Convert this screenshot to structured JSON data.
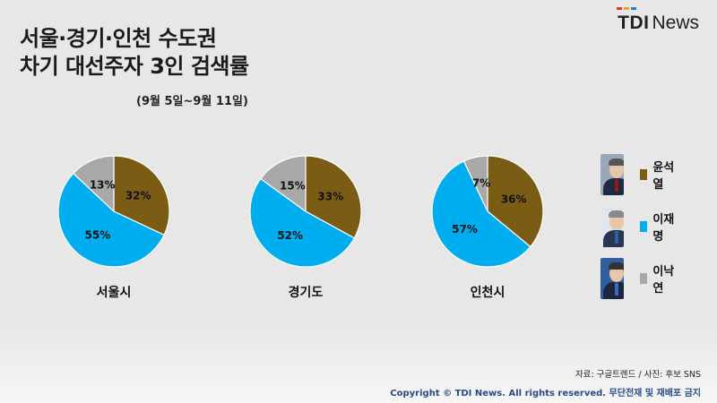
{
  "header": {
    "title_line1": "서울·경기·인천 수도권",
    "title_line2": "차기 대선주자 3인 검색률",
    "subtitle": "(9월 5일~9월 11일)"
  },
  "brand": {
    "tdi": "TDI",
    "news": "News"
  },
  "chart_data": [
    {
      "type": "pie",
      "title": "서울시",
      "labels": [
        "윤석열",
        "이재명",
        "이낙연"
      ],
      "values": [
        32,
        55,
        13
      ],
      "value_labels": [
        "32%",
        "55%",
        "13%"
      ],
      "colors": [
        "#7b5c14",
        "#00aeef",
        "#a8a8a8"
      ]
    },
    {
      "type": "pie",
      "title": "경기도",
      "labels": [
        "윤석열",
        "이재명",
        "이낙연"
      ],
      "values": [
        33,
        52,
        15
      ],
      "value_labels": [
        "33%",
        "52%",
        "15%"
      ],
      "colors": [
        "#7b5c14",
        "#00aeef",
        "#a8a8a8"
      ]
    },
    {
      "type": "pie",
      "title": "인천시",
      "labels": [
        "윤석열",
        "이재명",
        "이낙연"
      ],
      "values": [
        36,
        57,
        7
      ],
      "value_labels": [
        "36%",
        "57%",
        "7%"
      ],
      "colors": [
        "#7b5c14",
        "#00aeef",
        "#a8a8a8"
      ]
    }
  ],
  "legend": [
    {
      "name": "윤석열",
      "color": "#7b5c14",
      "photo_icon": "candidate-photo-icon"
    },
    {
      "name": "이재명",
      "color": "#00aeef",
      "photo_icon": "candidate-photo-icon"
    },
    {
      "name": "이낙연",
      "color": "#a8a8a8",
      "photo_icon": "candidate-photo-icon"
    }
  ],
  "footer": {
    "source": "자료: 구글트렌드 / 사진: 후보 SNS",
    "copyright": "Copyright © TDI News. All rights reserved. 무단전재 및 재배포 금지"
  }
}
